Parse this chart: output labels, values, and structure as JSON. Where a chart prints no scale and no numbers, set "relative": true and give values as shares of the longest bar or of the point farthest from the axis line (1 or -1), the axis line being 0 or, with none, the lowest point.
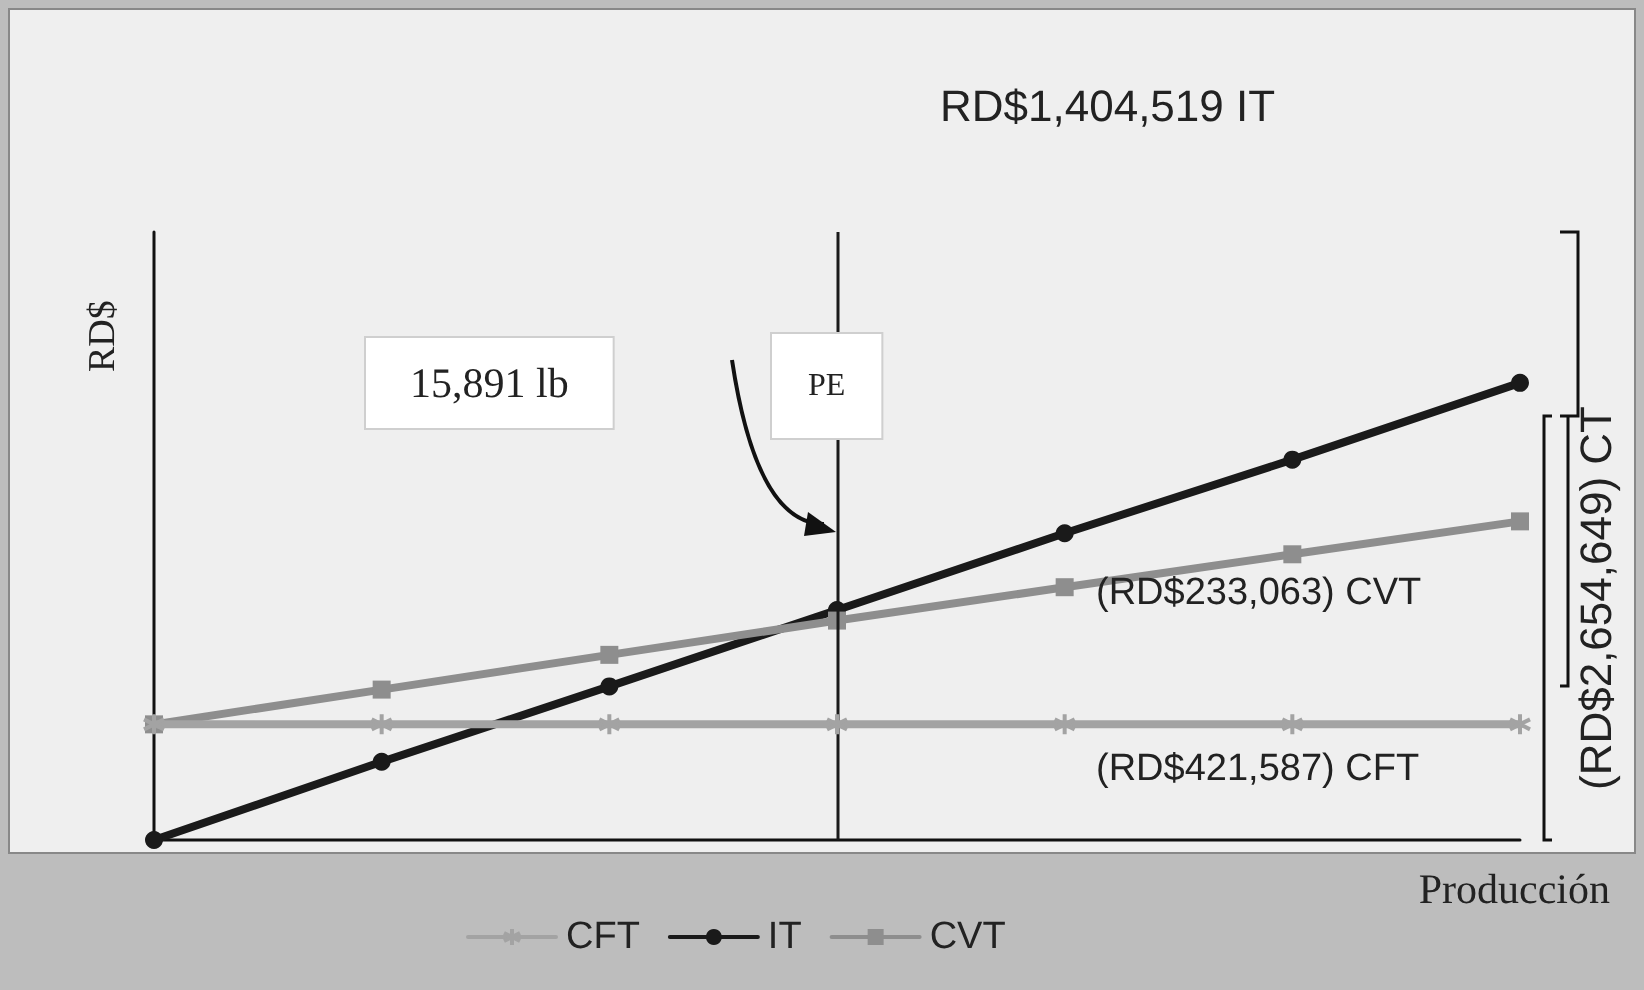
{
  "chart_data": {
    "type": "line",
    "relative": true,
    "xlabel": "Producción",
    "ylabel": "RD$",
    "categories": [
      null,
      null,
      null,
      null,
      null,
      null,
      null
    ],
    "series": [
      {
        "name": "CFT",
        "color": "#a3a3a3",
        "marker": "cross",
        "values": [
          0.253,
          0.253,
          0.253,
          0.253,
          0.253,
          0.253,
          0.253
        ]
      },
      {
        "name": "IT",
        "color": "#1a1a1a",
        "marker": "circle",
        "values": [
          0,
          0.171,
          0.336,
          0.503,
          0.671,
          0.832,
          1
        ]
      },
      {
        "name": "CVT",
        "color": "#8e8e8e",
        "marker": "square",
        "values": [
          0.253,
          0.329,
          0.405,
          0.48,
          0.553,
          0.625,
          0.697
        ]
      }
    ],
    "annotations": [
      "RD$1,404,519 IT",
      "15,891 lb",
      "PE",
      "(RD$233,063) CVT",
      "(RD$421,587) CFT",
      "(RD$2,654,649) CT"
    ],
    "legend": "bottom",
    "grid": false,
    "line_style": "solid"
  }
}
